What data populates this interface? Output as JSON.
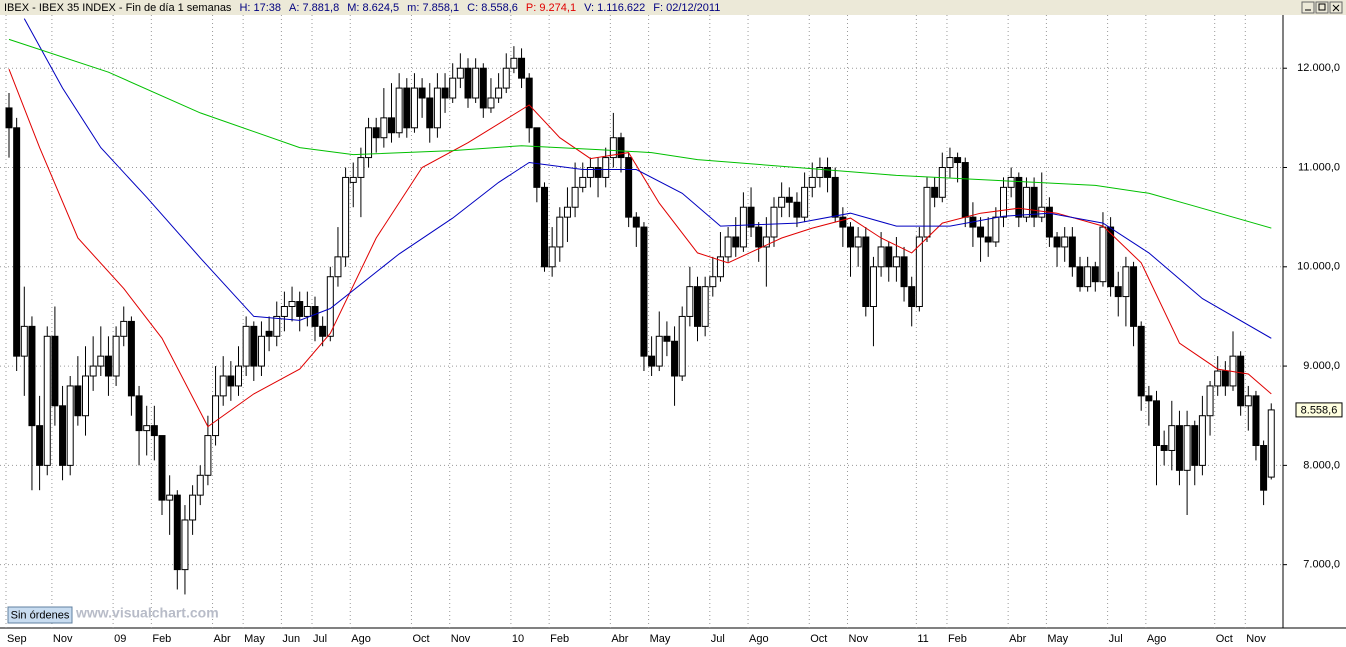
{
  "chart_data": {
    "type": "candlestick",
    "header": [
      {
        "text": "IBEX - IBEX 35 INDEX - Fin de día 1 semanas",
        "color": "#000000"
      },
      {
        "text": "H: 17:38",
        "color": "#000080"
      },
      {
        "text": "A: 7.881,8",
        "color": "#000080"
      },
      {
        "text": "M: 8.624,5",
        "color": "#000080"
      },
      {
        "text": "m: 7.858,1",
        "color": "#000080"
      },
      {
        "text": "C: 8.558,6",
        "color": "#000080"
      },
      {
        "text": "P: 9.274,1",
        "color": "#e00000"
      },
      {
        "text": "V: 1.116.622",
        "color": "#000080"
      },
      {
        "text": "F: 02/12/2011",
        "color": "#000080"
      }
    ],
    "categories": [
      "Sep",
      null,
      null,
      null,
      null,
      null,
      "Nov",
      null,
      null,
      null,
      null,
      null,
      null,
      null,
      "09",
      null,
      null,
      null,
      null,
      "Feb",
      null,
      null,
      null,
      null,
      null,
      null,
      null,
      "Abr",
      null,
      null,
      null,
      "May",
      null,
      null,
      null,
      null,
      "Jun",
      null,
      null,
      null,
      "Jul",
      null,
      null,
      null,
      null,
      "Ago",
      null,
      null,
      null,
      null,
      null,
      null,
      null,
      "Oct",
      null,
      null,
      null,
      null,
      "Nov",
      null,
      null,
      null,
      null,
      null,
      null,
      null,
      "10",
      null,
      null,
      null,
      null,
      "Feb",
      null,
      null,
      null,
      null,
      null,
      null,
      null,
      "Abr",
      null,
      null,
      null,
      null,
      "May",
      null,
      null,
      null,
      null,
      null,
      null,
      null,
      "Jul",
      null,
      null,
      null,
      null,
      "Ago",
      null,
      null,
      null,
      null,
      null,
      null,
      null,
      "Oct",
      null,
      null,
      null,
      null,
      "Nov",
      null,
      null,
      null,
      null,
      null,
      null,
      null,
      null,
      "11",
      null,
      null,
      null,
      "Feb",
      null,
      null,
      null,
      null,
      null,
      null,
      null,
      "Abr",
      null,
      null,
      null,
      null,
      "May",
      null,
      null,
      null,
      null,
      null,
      null,
      null,
      "Jul",
      null,
      null,
      null,
      null,
      "Ago",
      null,
      null,
      null,
      null,
      null,
      null,
      null,
      null,
      "Oct",
      null,
      null,
      null,
      "Nov",
      null,
      null,
      null
    ],
    "open": [
      11600,
      11400,
      9100,
      9400,
      8400,
      8000,
      9300,
      8600,
      8000,
      8800,
      8500,
      8900,
      9000,
      9100,
      8900,
      9300,
      9450,
      8700,
      8350,
      8400,
      8300,
      7650,
      7700,
      6950,
      7450,
      7700,
      7900,
      8300,
      8700,
      8900,
      8800,
      9000,
      9400,
      9000,
      9350,
      9300,
      9500,
      9600,
      9650,
      9500,
      9600,
      9400,
      9300,
      9900,
      10100,
      10850,
      10900,
      11100,
      11400,
      11300,
      11500,
      11350,
      11800,
      11400,
      11800,
      11700,
      11400,
      11800,
      11700,
      11900,
      12000,
      11700,
      12000,
      11600,
      11700,
      11800,
      12000,
      12100,
      11900,
      11400,
      10800,
      10000,
      10200,
      10500,
      10600,
      10800,
      10900,
      11000,
      10900,
      11100,
      11300,
      11100,
      10500,
      10400,
      9100,
      9000,
      9300,
      9250,
      8900,
      9500,
      9800,
      9400,
      9800,
      9900,
      10100,
      10300,
      10200,
      10600,
      10400,
      10200,
      10300,
      10600,
      10700,
      10650,
      10500,
      10800,
      10900,
      11000,
      10900,
      10500,
      10400,
      10200,
      10300,
      9600,
      10000,
      10200,
      10000,
      10100,
      9800,
      9600,
      10300,
      10800,
      10700,
      11000,
      11100,
      11050,
      10500,
      10400,
      10300,
      10250,
      10500,
      10800,
      10900,
      10500,
      10800,
      10500,
      10600,
      10300,
      10200,
      10300,
      10000,
      9800,
      10000,
      9850,
      10400,
      9800,
      9700,
      10000,
      9400,
      8700,
      8650,
      8200,
      8150,
      8400,
      7950,
      8400,
      8000,
      8500,
      8800,
      8950,
      8800,
      9100,
      8600,
      8700,
      8200,
      7881.8
    ],
    "high": [
      11750,
      11500,
      9800,
      9500,
      8700,
      9400,
      9600,
      8800,
      8900,
      9100,
      9200,
      9300,
      9400,
      9300,
      9400,
      9600,
      9500,
      8800,
      8600,
      8600,
      8300,
      7900,
      7750,
      7600,
      7800,
      8000,
      8500,
      9000,
      9100,
      9050,
      9200,
      9500,
      9450,
      9450,
      9500,
      9650,
      9750,
      9800,
      9750,
      9750,
      9700,
      9500,
      10000,
      10400,
      11000,
      11050,
      11200,
      11500,
      11500,
      11800,
      11850,
      11950,
      11900,
      11950,
      11900,
      11850,
      11950,
      11950,
      12050,
      12150,
      12100,
      12100,
      12050,
      11900,
      11950,
      12150,
      12222,
      12200,
      11950,
      11400,
      10850,
      10400,
      10600,
      10800,
      11050,
      11050,
      11100,
      11100,
      11200,
      11550,
      11350,
      11150,
      10550,
      10450,
      9300,
      9550,
      9450,
      9400,
      9600,
      10000,
      9900,
      9900,
      10100,
      10350,
      10400,
      10500,
      10750,
      10800,
      10450,
      10500,
      10700,
      10850,
      10800,
      10750,
      10950,
      11050,
      11100,
      11100,
      11000,
      10600,
      10450,
      10400,
      10400,
      10100,
      10350,
      10250,
      10300,
      10200,
      9900,
      10400,
      10900,
      10900,
      11150,
      11200,
      11150,
      11100,
      10650,
      10500,
      10500,
      10600,
      10900,
      11000,
      10950,
      10900,
      10900,
      10950,
      10700,
      10350,
      10400,
      10400,
      10100,
      10100,
      10050,
      10550,
      10500,
      9950,
      10100,
      10050,
      9450,
      8800,
      8750,
      8350,
      8650,
      8550,
      8550,
      8450,
      8700,
      8850,
      9100,
      9050,
      9350,
      9150,
      8800,
      8750,
      8250,
      8624.5
    ],
    "low": [
      11100,
      8950,
      8700,
      7750,
      7750,
      7900,
      8400,
      7850,
      7900,
      8400,
      8300,
      8750,
      8900,
      8700,
      8800,
      9200,
      8500,
      8000,
      8100,
      8050,
      7500,
      7300,
      6750,
      6700,
      7300,
      7600,
      7800,
      8200,
      8600,
      8650,
      8700,
      8900,
      8850,
      8900,
      9150,
      9200,
      9350,
      9450,
      9350,
      9400,
      9250,
      9200,
      9250,
      9800,
      10000,
      10600,
      10500,
      11000,
      11150,
      11200,
      11250,
      11300,
      11300,
      11350,
      11500,
      11250,
      11300,
      11550,
      11650,
      11800,
      11600,
      11650,
      11500,
      11550,
      11650,
      11750,
      11950,
      11800,
      11250,
      10650,
      9950,
      9900,
      10050,
      10250,
      10500,
      10750,
      10800,
      10700,
      10800,
      11000,
      10950,
      10400,
      10200,
      8950,
      8900,
      8950,
      9100,
      8600,
      8850,
      9400,
      9250,
      9300,
      9700,
      9850,
      10050,
      10100,
      10150,
      10300,
      10050,
      9800,
      10200,
      10500,
      10500,
      10400,
      10450,
      10700,
      10800,
      10750,
      10450,
      10200,
      9900,
      10000,
      9500,
      9200,
      9900,
      9850,
      9850,
      9650,
      9400,
      9550,
      10250,
      10600,
      10650,
      10900,
      10850,
      10400,
      10200,
      10050,
      10100,
      10200,
      10400,
      10700,
      10400,
      10450,
      10400,
      10450,
      10200,
      10000,
      10050,
      9900,
      9750,
      9750,
      9750,
      9800,
      9700,
      9500,
      9400,
      9200,
      8550,
      8400,
      7800,
      8000,
      7950,
      7800,
      7500,
      7800,
      7900,
      8300,
      8700,
      8700,
      8750,
      8500,
      8350,
      8050,
      7600,
      7858.1
    ],
    "close": [
      11400,
      9100,
      9400,
      8400,
      8000,
      9300,
      8600,
      8000,
      8800,
      8500,
      8900,
      9000,
      9100,
      8900,
      9300,
      9450,
      8700,
      8350,
      8400,
      8300,
      7650,
      7700,
      6950,
      7450,
      7700,
      7900,
      8300,
      8700,
      8900,
      8800,
      9000,
      9400,
      9000,
      9300,
      9300,
      9500,
      9600,
      9650,
      9500,
      9600,
      9400,
      9300,
      9900,
      10100,
      10900,
      10900,
      11100,
      11400,
      11300,
      11500,
      11350,
      11800,
      11400,
      11800,
      11700,
      11400,
      11800,
      11700,
      11900,
      12000,
      11700,
      12000,
      11600,
      11700,
      11800,
      12000,
      12100,
      11900,
      11400,
      10800,
      10000,
      10200,
      10500,
      10600,
      10800,
      10900,
      11000,
      10900,
      11100,
      11300,
      11100,
      10500,
      10400,
      9100,
      9000,
      9300,
      9250,
      8900,
      9500,
      9800,
      9400,
      9800,
      9900,
      10100,
      10300,
      10200,
      10600,
      10400,
      10200,
      10300,
      10600,
      10700,
      10650,
      10500,
      10800,
      10900,
      11000,
      10900,
      10500,
      10400,
      10200,
      10300,
      9600,
      10000,
      10200,
      10000,
      10100,
      9800,
      9600,
      10300,
      10800,
      10700,
      11000,
      11100,
      11050,
      10500,
      10400,
      10300,
      10250,
      10500,
      10800,
      10900,
      10500,
      10800,
      10500,
      10600,
      10300,
      10200,
      10300,
      10000,
      9800,
      10000,
      9850,
      10400,
      9800,
      9700,
      10000,
      9400,
      8700,
      8650,
      8200,
      8150,
      8400,
      7950,
      8400,
      8000,
      8500,
      8800,
      8950,
      8800,
      9100,
      8600,
      8700,
      8200,
      7750,
      8558.6
    ],
    "overlays": [
      {
        "color": "#e00000",
        "x": [
          0,
          4,
          9,
          15,
          20,
          26,
          32,
          38,
          42,
          48,
          54,
          60,
          68,
          72,
          76,
          81,
          85,
          90,
          94,
          101,
          105,
          110,
          114,
          118,
          122,
          127,
          132,
          137,
          143,
          148,
          153,
          158,
          162,
          165
        ],
        "values": [
          11990,
          11200,
          10290,
          9780,
          9280,
          8390,
          8720,
          8970,
          9330,
          10290,
          11000,
          11250,
          11630,
          11300,
          11090,
          11150,
          10640,
          10140,
          10040,
          10290,
          10390,
          10490,
          10290,
          10140,
          10440,
          10540,
          10590,
          10540,
          10410,
          10040,
          9230,
          8970,
          8920,
          8720
        ]
      },
      {
        "color": "#0000c0",
        "x": [
          2,
          7,
          12,
          18,
          25,
          32,
          38,
          42,
          51,
          58,
          64,
          68,
          75,
          82,
          88,
          93,
          103,
          110,
          116,
          123,
          130,
          136,
          143,
          149,
          156,
          165
        ],
        "values": [
          12500,
          11800,
          11200,
          10700,
          10090,
          9500,
          9460,
          9580,
          10130,
          10490,
          10850,
          11050,
          10980,
          10980,
          10740,
          10410,
          10440,
          10540,
          10410,
          10410,
          10510,
          10540,
          10440,
          10140,
          9680,
          9280
        ]
      },
      {
        "color": "#00c000",
        "x": [
          0,
          13,
          25,
          38,
          45,
          58,
          67,
          77,
          84,
          90,
          103,
          116,
          129,
          142,
          149,
          155,
          165
        ],
        "values": [
          12290,
          11960,
          11550,
          11200,
          11130,
          11170,
          11220,
          11180,
          11150,
          11080,
          11000,
          10920,
          10870,
          10820,
          10740,
          10610,
          10390
        ]
      }
    ],
    "ylim": [
      6362,
      12536
    ],
    "yticks": [
      {
        "value": 7000,
        "label": "7.000,0"
      },
      {
        "value": 8000,
        "label": "8.000,0"
      },
      {
        "value": 9000,
        "label": "9.000,0"
      },
      {
        "value": 10000,
        "label": "10.000,0"
      },
      {
        "value": 11000,
        "label": "11.000,0"
      },
      {
        "value": 12000,
        "label": "12.000,0"
      }
    ],
    "grid": true,
    "last_value_label": "8.558,6",
    "button": "Sin órdenes",
    "watermark": "www.visualchart.com"
  }
}
